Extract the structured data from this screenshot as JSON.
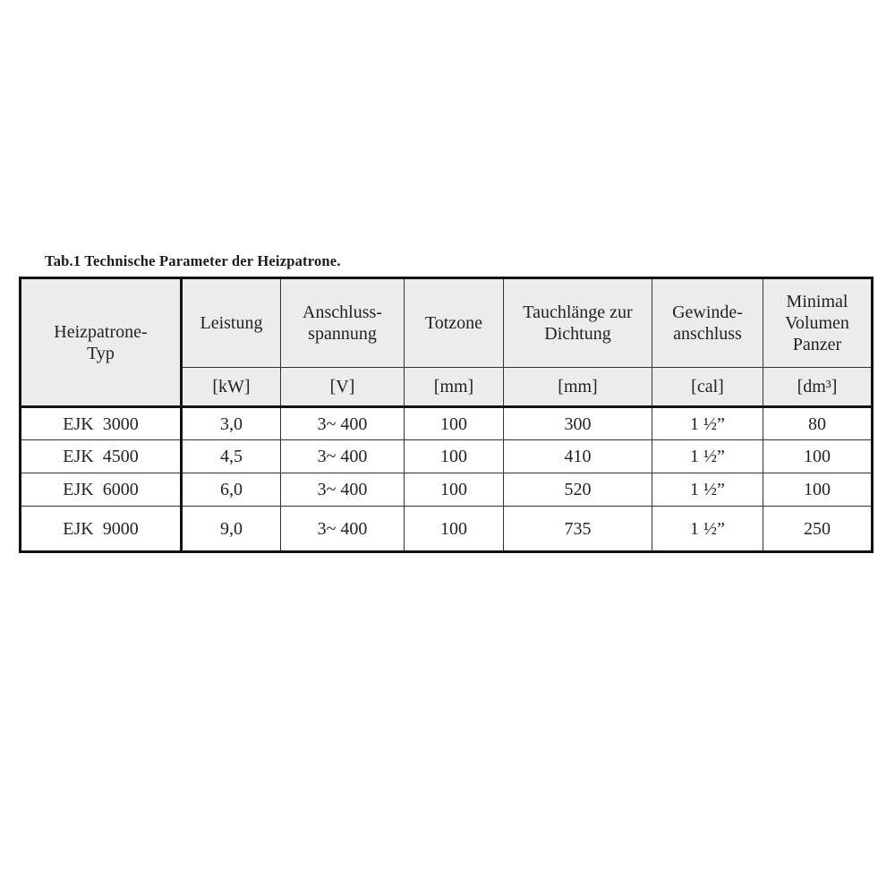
{
  "caption": "Tab.1 Technische Parameter der Heizpatrone.",
  "headers": {
    "type": [
      "Heizpatrone-",
      "Typ"
    ],
    "columns": [
      {
        "label": [
          "Leistung"
        ],
        "unit": "[kW]"
      },
      {
        "label": [
          "Anschluss-",
          "spannung"
        ],
        "unit": "[V]"
      },
      {
        "label": [
          "Totzone"
        ],
        "unit": "[mm]"
      },
      {
        "label": [
          "Tauchlänge zur",
          "Dichtung"
        ],
        "unit": "[mm]"
      },
      {
        "label": [
          "Gewinde-",
          "anschluss"
        ],
        "unit": "[cal]"
      },
      {
        "label": [
          "Minimal",
          "Volumen",
          "Panzer"
        ],
        "unit": "[dm³]"
      }
    ]
  },
  "rows": [
    [
      "EJK  3000",
      "3,0",
      "3~ 400",
      "100",
      "300",
      "1 ½”",
      "80"
    ],
    [
      "EJK  4500",
      "4,5",
      "3~ 400",
      "100",
      "410",
      "1 ½”",
      "100"
    ],
    [
      "EJK  6000",
      "6,0",
      "3~ 400",
      "100",
      "520",
      "1 ½”",
      "100"
    ],
    [
      "EJK  9000",
      "9,0",
      "3~ 400",
      "100",
      "735",
      "1 ½”",
      "250"
    ]
  ]
}
